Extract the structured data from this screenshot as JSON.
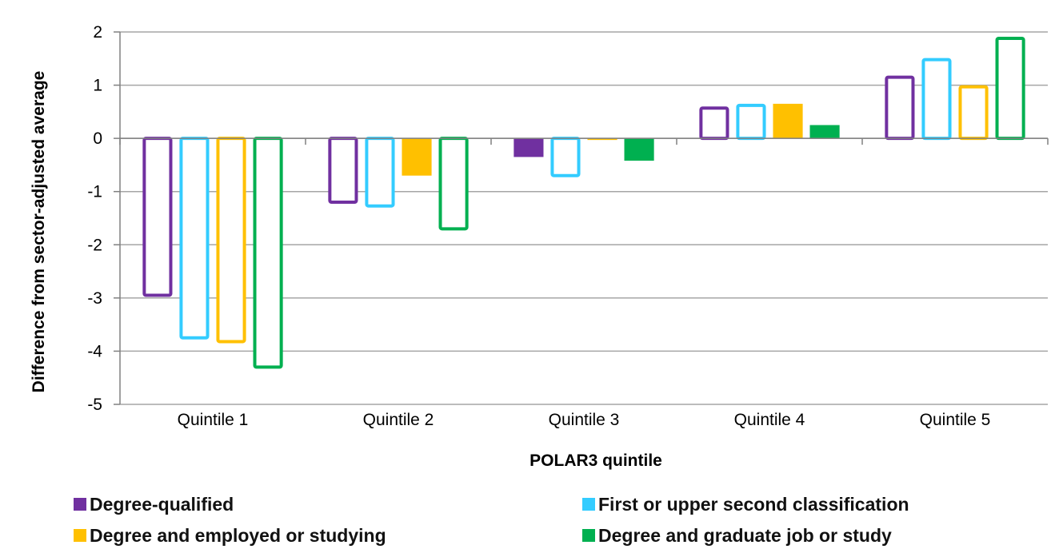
{
  "chart_data": {
    "type": "bar",
    "categories": [
      "Quintile 1",
      "Quintile 2",
      "Quintile 3",
      "Quintile 4",
      "Quintile 5"
    ],
    "series": [
      {
        "name": "Degree-qualified",
        "color": "#7030a0",
        "style": "outline",
        "values": [
          -2.95,
          -1.2,
          -0.35,
          0.57,
          1.15
        ]
      },
      {
        "name": "First or upper second classification",
        "color": "#33ccff",
        "style": "outline",
        "values": [
          -3.75,
          -1.27,
          -0.7,
          0.62,
          1.48
        ]
      },
      {
        "name": "Degree and employed or  studying",
        "color": "#ffc000",
        "style": "mixed",
        "values": [
          -3.82,
          -0.7,
          -0.03,
          0.65,
          0.97
        ]
      },
      {
        "name": "Degree and graduate job or study",
        "color": "#00b050",
        "style": "mixed",
        "values": [
          -4.3,
          -1.7,
          -0.42,
          0.25,
          1.88
        ]
      }
    ],
    "title": "",
    "xlabel": "POLAR3 quintile",
    "ylabel": "Difference from sector-adjusted average",
    "ylim": [
      -5,
      2
    ],
    "yticks": [
      "-5",
      "-4",
      "-3",
      "-2",
      "-1",
      "0",
      "1",
      "2"
    ],
    "grid": true,
    "legend_position": "bottom"
  }
}
